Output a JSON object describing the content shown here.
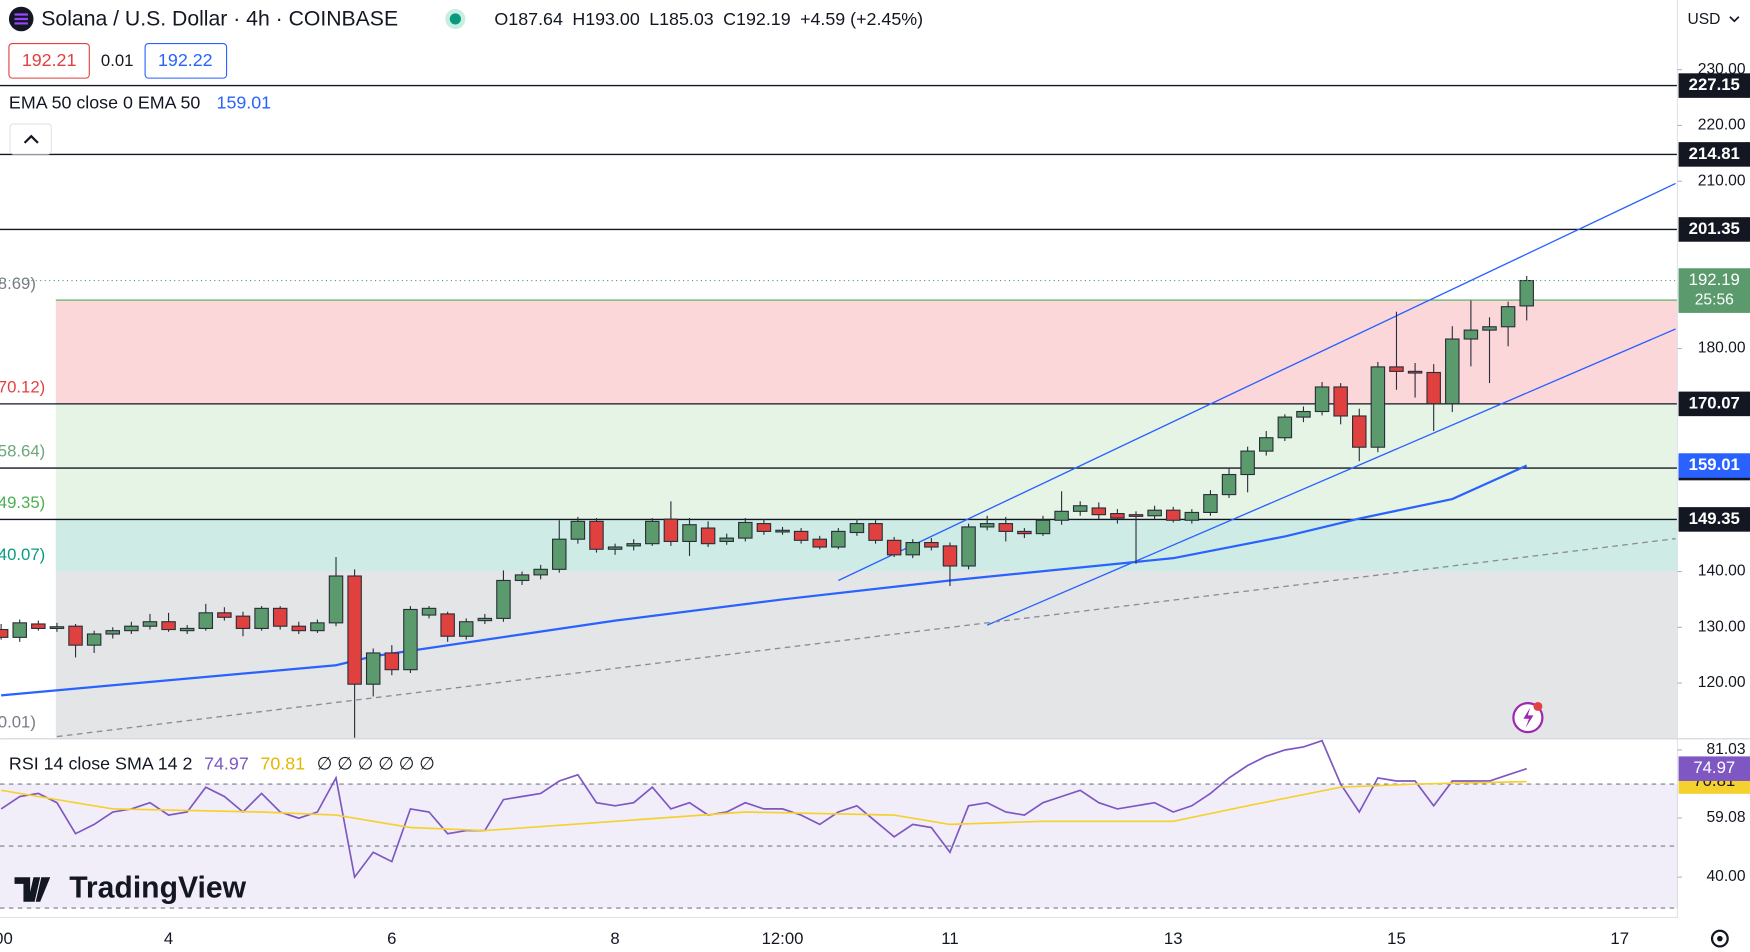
{
  "chart_data": [
    {
      "type": "candlestick",
      "title": "Solana / U.S. Dollar · 4h · COINBASE",
      "header_values": [
        "O187.64",
        "H193.00",
        "L185.03",
        "C192.19",
        "+4.59 (+2.45%)"
      ],
      "bid": 192.21,
      "spread": 0.01,
      "ask": 192.22,
      "currency": "USD",
      "countdown": "25:56",
      "categories": [
        ":00",
        null,
        null,
        null,
        null,
        null,
        null,
        null,
        null,
        "4",
        null,
        null,
        null,
        null,
        null,
        null,
        null,
        null,
        null,
        null,
        null,
        "6",
        null,
        null,
        null,
        null,
        null,
        null,
        null,
        null,
        null,
        null,
        null,
        "8",
        null,
        null,
        null,
        null,
        null,
        null,
        null,
        null,
        "12:00",
        null,
        null,
        null,
        null,
        null,
        null,
        null,
        null,
        "11",
        null,
        null,
        null,
        null,
        null,
        null,
        null,
        null,
        null,
        null,
        null,
        "13",
        null,
        null,
        null,
        null,
        null,
        null,
        null,
        null,
        null,
        null,
        null,
        "15",
        null,
        null,
        null,
        null,
        null,
        null,
        null,
        null,
        null,
        null,
        null,
        "17",
        null,
        null,
        null
      ],
      "ohlc": [
        [
          129.6,
          130.6,
          127.8,
          128.2
        ],
        [
          128.2,
          131.4,
          127.4,
          130.8
        ],
        [
          130.6,
          131.2,
          129.4,
          129.8
        ],
        [
          129.9,
          130.8,
          129.2,
          130.1
        ],
        [
          130.2,
          130.6,
          124.6,
          126.8
        ],
        [
          126.8,
          129.4,
          125.4,
          128.8
        ],
        [
          128.8,
          130.0,
          128.0,
          129.4
        ],
        [
          129.4,
          131.0,
          128.8,
          130.2
        ],
        [
          130.2,
          132.4,
          129.6,
          131.0
        ],
        [
          131.0,
          132.6,
          129.2,
          129.6
        ],
        [
          129.4,
          130.4,
          128.8,
          129.8
        ],
        [
          129.8,
          134.2,
          129.4,
          132.6
        ],
        [
          132.6,
          133.6,
          131.2,
          131.8
        ],
        [
          132.0,
          132.8,
          128.4,
          129.8
        ],
        [
          129.8,
          133.8,
          129.4,
          133.4
        ],
        [
          133.4,
          133.8,
          129.6,
          130.2
        ],
        [
          130.2,
          131.0,
          128.8,
          129.4
        ],
        [
          129.4,
          131.4,
          129.0,
          130.8
        ],
        [
          130.8,
          142.6,
          130.2,
          139.2
        ],
        [
          139.2,
          140.4,
          110.2,
          119.8
        ],
        [
          119.8,
          126.2,
          117.6,
          125.4
        ],
        [
          125.4,
          126.8,
          121.4,
          122.4
        ],
        [
          122.4,
          133.8,
          121.8,
          133.2
        ],
        [
          132.2,
          133.8,
          131.6,
          133.4
        ],
        [
          132.4,
          132.8,
          127.4,
          128.4
        ],
        [
          128.4,
          131.6,
          127.8,
          131.0
        ],
        [
          131.2,
          132.4,
          130.6,
          131.6
        ],
        [
          131.6,
          140.2,
          131.0,
          138.4
        ],
        [
          138.4,
          140.0,
          137.6,
          139.4
        ],
        [
          139.4,
          141.2,
          138.6,
          140.4
        ],
        [
          140.4,
          149.2,
          139.8,
          145.8
        ],
        [
          145.8,
          149.8,
          145.0,
          149.0
        ],
        [
          149.0,
          149.6,
          143.4,
          144.0
        ],
        [
          144.0,
          145.0,
          143.0,
          144.4
        ],
        [
          144.6,
          145.8,
          143.8,
          145.0
        ],
        [
          145.0,
          149.6,
          144.6,
          149.0
        ],
        [
          149.4,
          152.6,
          144.6,
          145.4
        ],
        [
          145.4,
          149.6,
          142.8,
          148.4
        ],
        [
          147.8,
          149.0,
          144.4,
          145.0
        ],
        [
          145.4,
          146.8,
          144.8,
          146.0
        ],
        [
          146.0,
          149.6,
          145.4,
          148.8
        ],
        [
          148.6,
          149.4,
          146.6,
          147.2
        ],
        [
          147.2,
          148.0,
          146.6,
          147.4
        ],
        [
          147.2,
          147.8,
          145.0,
          145.6
        ],
        [
          145.8,
          146.4,
          144.0,
          144.4
        ],
        [
          144.4,
          147.8,
          144.0,
          147.2
        ],
        [
          147.0,
          149.4,
          146.4,
          148.6
        ],
        [
          148.6,
          149.2,
          145.0,
          145.6
        ],
        [
          145.6,
          146.2,
          142.6,
          143.0
        ],
        [
          143.0,
          145.8,
          142.4,
          145.2
        ],
        [
          145.2,
          146.0,
          143.8,
          144.4
        ],
        [
          144.6,
          145.2,
          137.4,
          141.0
        ],
        [
          141.0,
          148.6,
          140.4,
          148.0
        ],
        [
          148.0,
          150.0,
          147.4,
          148.6
        ],
        [
          148.6,
          149.8,
          145.4,
          147.2
        ],
        [
          147.2,
          147.8,
          146.0,
          146.8
        ],
        [
          146.8,
          150.0,
          146.4,
          149.2
        ],
        [
          149.2,
          154.4,
          148.4,
          150.8
        ],
        [
          150.8,
          152.6,
          150.0,
          151.8
        ],
        [
          151.4,
          152.4,
          149.4,
          150.2
        ],
        [
          150.4,
          151.2,
          148.6,
          149.6
        ],
        [
          150.2,
          150.8,
          141.4,
          150.0
        ],
        [
          150.0,
          151.8,
          149.4,
          151.0
        ],
        [
          151.0,
          151.6,
          148.8,
          149.2
        ],
        [
          149.2,
          151.2,
          148.6,
          150.6
        ],
        [
          150.6,
          154.6,
          150.0,
          153.8
        ],
        [
          153.8,
          158.6,
          153.2,
          157.4
        ],
        [
          157.4,
          162.4,
          154.2,
          161.6
        ],
        [
          161.6,
          165.2,
          160.8,
          164.0
        ],
        [
          164.0,
          168.2,
          163.4,
          167.7
        ],
        [
          167.7,
          169.6,
          166.8,
          168.7
        ],
        [
          168.7,
          174.0,
          168.0,
          173.1
        ],
        [
          173.1,
          173.8,
          166.4,
          167.9
        ],
        [
          167.9,
          169.2,
          159.8,
          162.3
        ],
        [
          162.3,
          177.6,
          161.4,
          176.7
        ],
        [
          176.7,
          186.6,
          172.6,
          175.9
        ],
        [
          175.9,
          177.4,
          171.2,
          175.7
        ],
        [
          175.7,
          177.2,
          165.2,
          170.1
        ],
        [
          170.1,
          184.0,
          168.6,
          181.7
        ],
        [
          181.7,
          188.6,
          176.8,
          183.3
        ],
        [
          183.3,
          185.6,
          173.8,
          183.9
        ],
        [
          183.9,
          188.4,
          180.4,
          187.5
        ],
        [
          187.64,
          193.0,
          185.03,
          192.19
        ],
        null,
        null,
        null,
        null,
        null,
        null,
        null,
        null
      ],
      "up_color": "#5b9a6c",
      "down_color": "#e0413f",
      "ylim": [
        110,
        242.5
      ],
      "yticks": [
        {
          "value": 120,
          "label": "120.00"
        },
        {
          "value": 130,
          "label": "130.00"
        },
        {
          "value": 140,
          "label": "140.00"
        },
        {
          "value": 180,
          "label": "180.00"
        },
        {
          "value": 210,
          "label": "210.00"
        },
        {
          "value": 220,
          "label": "220.00"
        },
        {
          "value": 230,
          "label": "230.00"
        }
      ],
      "levels": [
        227.15,
        214.81,
        201.35,
        170.07,
        158.56,
        149.35
      ],
      "ema": {
        "name": "EMA 50 close 0 EMA 50",
        "color": "#2962ff",
        "x": [
          0,
          18,
          20,
          33,
          42,
          51,
          63,
          69,
          73,
          78,
          82
        ],
        "values": [
          117.8,
          123.2,
          124.8,
          131.2,
          135,
          138.4,
          142.4,
          146.3,
          149.5,
          153,
          159.01
        ]
      },
      "trendlines": [
        {
          "color": "#2962ff",
          "dashed": false,
          "x": [
            45,
            90
          ],
          "values": [
            138.4,
            209.6
          ]
        },
        {
          "color": "#2962ff",
          "dashed": false,
          "x": [
            53,
            90
          ],
          "values": [
            130.4,
            183.5
          ]
        },
        {
          "color": "#8a8d96",
          "dashed": true,
          "x": [
            3,
            90
          ],
          "values": [
            110.4,
            145.9
          ]
        }
      ],
      "fib": {
        "bounds": [
          188.69,
          170.12,
          158.64,
          149.35,
          140.07,
          110.01
        ],
        "labels": [
          "8.69)",
          "70.12)",
          "58.64)",
          "49.35)",
          "40.07)",
          "0.01)"
        ],
        "label_colors": [
          "#787b86",
          "#e0413f",
          "#6aa77a",
          "#4caf50",
          "#089981",
          "#787b86"
        ],
        "colors": [
          "rgba(242,54,69,0.2)",
          "rgba(76,175,80,0.14)",
          "rgba(76,175,80,0.14)",
          "rgba(8,153,129,0.2)",
          "rgba(120,123,134,0.2)"
        ]
      }
    },
    {
      "type": "line",
      "title": "RSI 14 close SMA 14 2",
      "legend_extra": "∅ ∅ ∅ ∅ ∅ ∅",
      "ylim": [
        27,
        84.6
      ],
      "yticks": [
        81.03,
        59.08,
        {
          "value": 40,
          "label": "40.00"
        }
      ],
      "hlines": [
        70,
        50,
        30
      ],
      "band": [
        30,
        70
      ],
      "series": [
        {
          "color": "#7e57c2",
          "values": [
            62,
            66,
            67,
            64,
            54,
            57,
            61,
            62,
            64,
            60,
            61,
            69,
            66,
            61,
            67,
            61,
            59,
            61,
            72,
            40,
            48,
            45,
            62,
            61,
            54,
            55,
            55,
            65,
            66,
            67,
            71,
            73,
            64,
            63,
            64,
            69,
            62,
            64,
            60,
            61,
            64,
            62,
            62,
            60,
            57,
            61,
            63,
            58,
            53,
            57,
            56,
            48,
            63,
            64,
            61,
            60,
            64,
            66,
            68,
            64,
            62,
            63,
            64,
            61,
            63,
            67,
            72,
            76,
            79,
            81,
            82,
            84,
            70,
            61,
            72,
            71,
            71,
            63,
            71,
            71,
            71,
            73,
            74.97,
            null,
            null,
            null,
            null,
            null,
            null,
            null,
            null
          ]
        },
        {
          "color": "#f5d130",
          "x": [
            0,
            6,
            14,
            18,
            22,
            26,
            33,
            40,
            48,
            51,
            56,
            63,
            67,
            72,
            76,
            82
          ],
          "values": [
            68,
            62,
            61,
            60,
            56,
            55,
            58,
            61,
            60,
            57,
            58,
            58,
            63,
            69,
            70,
            70.81
          ]
        }
      ]
    }
  ],
  "branding": "TradingView"
}
